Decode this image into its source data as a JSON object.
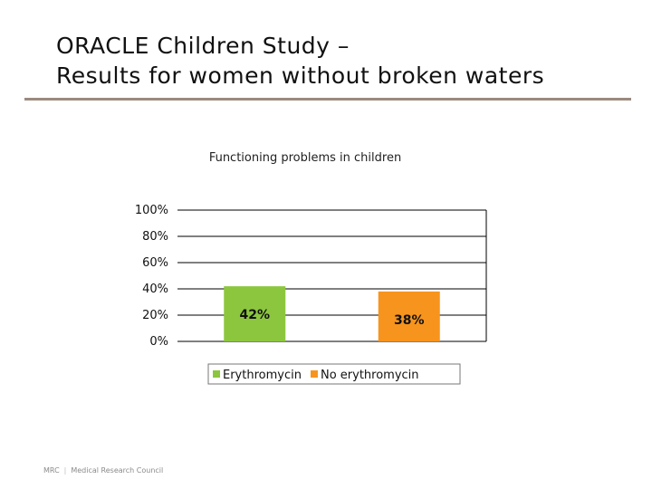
{
  "slide": {
    "title_line1": "ORACLE Children Study –",
    "title_line2": "Results for women without broken waters"
  },
  "colors": {
    "rule": "#9b8a7e",
    "erythromycin": "#8cc63f",
    "no_erythromycin": "#f7941d"
  },
  "chart_data": {
    "type": "bar",
    "title": "Functioning problems in children",
    "categories": [
      "Erythromycin",
      "No erythromycin"
    ],
    "series": [
      {
        "name": "Erythromycin",
        "values": [
          42,
          null
        ],
        "labels": [
          "42%",
          ""
        ],
        "color": "#8cc63f"
      },
      {
        "name": "No erythromycin",
        "values": [
          null,
          38
        ],
        "labels": [
          "",
          "38%"
        ],
        "color": "#f7941d"
      }
    ],
    "xlabel": "",
    "ylabel": "",
    "ylim": [
      0,
      100
    ],
    "yticks": [
      "0%",
      "20%",
      "40%",
      "60%",
      "80%",
      "100%"
    ],
    "grid": true,
    "legend": "bottom"
  },
  "footer": {
    "org_abbrev": "MRC",
    "org_name": "Medical Research Council"
  }
}
